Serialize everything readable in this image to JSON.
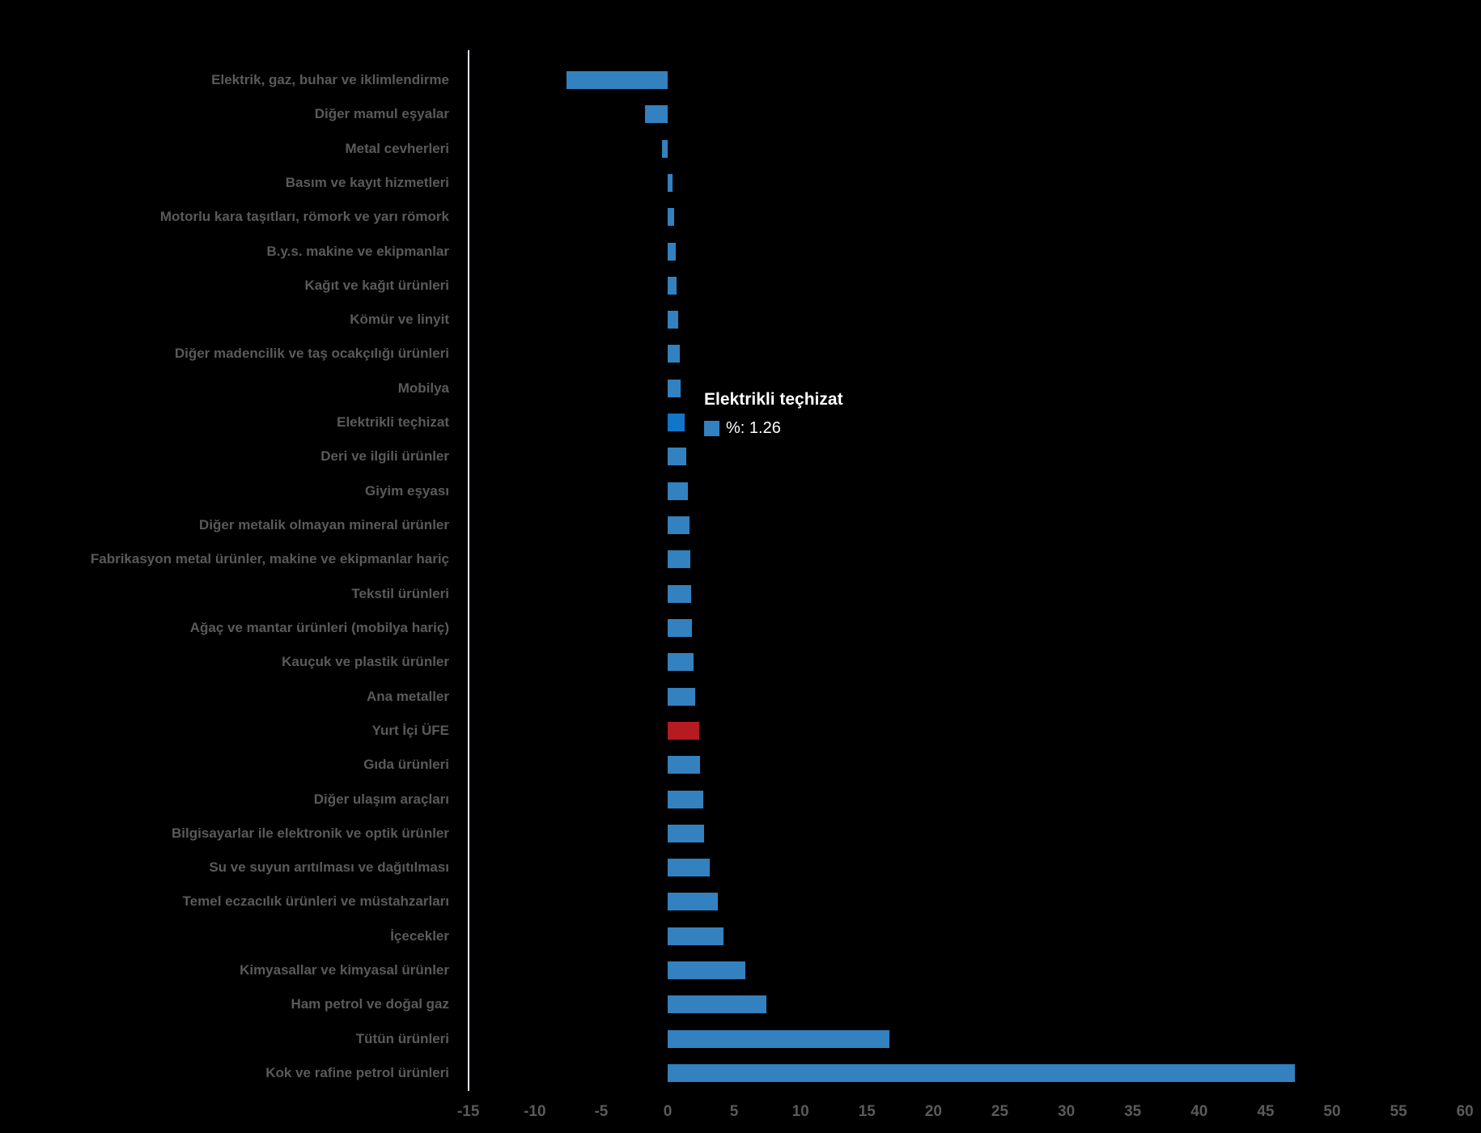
{
  "chart_data": {
    "type": "bar",
    "orientation": "horizontal",
    "title": "",
    "xlabel": "",
    "ylabel": "",
    "unit": "%",
    "xlim": [
      -15,
      60
    ],
    "grid": false,
    "ticks": [
      -15,
      -10,
      -5,
      0,
      5,
      10,
      15,
      20,
      25,
      30,
      35,
      40,
      45,
      50,
      55,
      60
    ],
    "tick_labels": [
      "-15",
      "-10",
      "-5",
      "0",
      "5",
      "10",
      "15",
      "20",
      "25",
      "30",
      "35",
      "40",
      "45",
      "50",
      "55",
      "60"
    ],
    "categories": [
      "Elektrik, gaz, buhar ve iklimlendirme",
      "Diğer mamul eşyalar",
      "Metal cevherleri",
      "Basım ve kayıt hizmetleri",
      "Motorlu kara taşıtları, römork ve yarı römork",
      "B.y.s. makine ve ekipmanlar",
      "Kağıt ve kağıt ürünleri",
      "Kömür ve linyit",
      "Diğer madencilik ve taş ocakçılığı ürünleri",
      "Mobilya",
      "Elektrikli teçhizat",
      "Deri ve ilgili ürünler",
      "Giyim eşyası",
      "Diğer metalik olmayan mineral ürünler",
      "Fabrikasyon metal ürünler, makine ve ekipmanlar hariç",
      "Tekstil ürünleri",
      "Ağaç ve mantar ürünleri (mobilya hariç)",
      "Kauçuk ve plastik ürünler",
      "Ana metaller",
      "Yurt İçi ÜFE",
      "Gıda ürünleri",
      "Diğer ulaşım araçları",
      "Bilgisayarlar ile elektronik ve optik ürünler",
      "Su ve suyun arıtılması ve dağıtılması",
      "Temel eczacılık ürünleri ve müstahzarları",
      "İçecekler",
      "Kimyasallar ve kimyasal ürünler",
      "Ham petrol ve doğal gaz",
      "Tütün ürünleri",
      "Kok ve rafine petrol ürünleri"
    ],
    "values": [
      -7.59,
      -1.7,
      -0.45,
      0.38,
      0.5,
      0.6,
      0.7,
      0.8,
      0.9,
      0.97,
      1.26,
      1.4,
      1.55,
      1.65,
      1.7,
      1.76,
      1.85,
      1.95,
      2.05,
      2.4,
      2.45,
      2.65,
      2.75,
      3.15,
      3.8,
      4.2,
      5.85,
      7.4,
      16.7,
      47.2
    ],
    "bar_color": "#3381BE",
    "highlight_color": "#1175C8",
    "baseline_color": "#B51B20",
    "highlight_category": "Elektrikli teçhizat",
    "baseline_category": "Yurt İçi ÜFE",
    "label_color": "#5a5a5a",
    "legend_position": "none"
  },
  "tooltip": {
    "title": "Elektrikli teçhizat",
    "value_label": "%: 1.26"
  }
}
